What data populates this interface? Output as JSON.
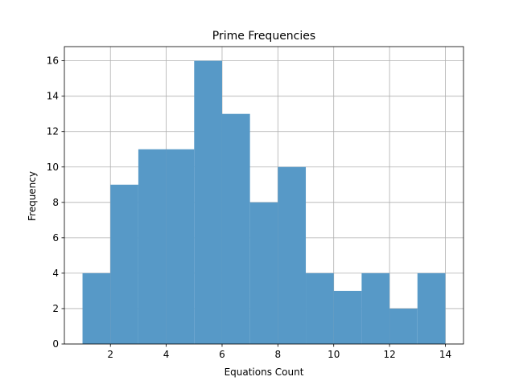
{
  "chart_data": {
    "type": "bar",
    "title": "Prime Frequencies",
    "xlabel": "Equations Count",
    "ylabel": "Frequency",
    "bins": [
      {
        "start": 1,
        "end": 2,
        "count": 4
      },
      {
        "start": 2,
        "end": 3,
        "count": 9
      },
      {
        "start": 3,
        "end": 4,
        "count": 11
      },
      {
        "start": 4,
        "end": 5,
        "count": 11
      },
      {
        "start": 5,
        "end": 6,
        "count": 16
      },
      {
        "start": 6,
        "end": 7,
        "count": 13
      },
      {
        "start": 7,
        "end": 8,
        "count": 8
      },
      {
        "start": 8,
        "end": 9,
        "count": 10
      },
      {
        "start": 9,
        "end": 10,
        "count": 4
      },
      {
        "start": 10,
        "end": 11,
        "count": 3
      },
      {
        "start": 11,
        "end": 12,
        "count": 4
      },
      {
        "start": 12,
        "end": 13,
        "count": 2
      },
      {
        "start": 13,
        "end": 14,
        "count": 4
      }
    ],
    "xlim": [
      0.35,
      14.65
    ],
    "ylim": [
      0,
      16.8
    ],
    "xticks": [
      2,
      4,
      6,
      8,
      10,
      12,
      14
    ],
    "yticks": [
      0,
      2,
      4,
      6,
      8,
      10,
      12,
      14,
      16
    ],
    "grid": true,
    "bar_color": "#5799c7",
    "grid_color": "#b0b0b0"
  }
}
